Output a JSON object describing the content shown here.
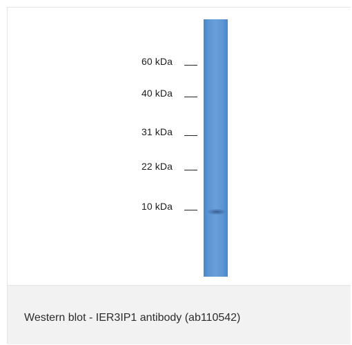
{
  "figure": {
    "markers": [
      {
        "label": "60 kDa"
      },
      {
        "label": "40 kDa"
      },
      {
        "label": "31 kDa"
      },
      {
        "label": "22 kDa"
      },
      {
        "label": "10 kDa"
      }
    ],
    "lane_color": "#5b95d3"
  },
  "caption": "Western blot - IER3IP1 antibody (ab110542)"
}
